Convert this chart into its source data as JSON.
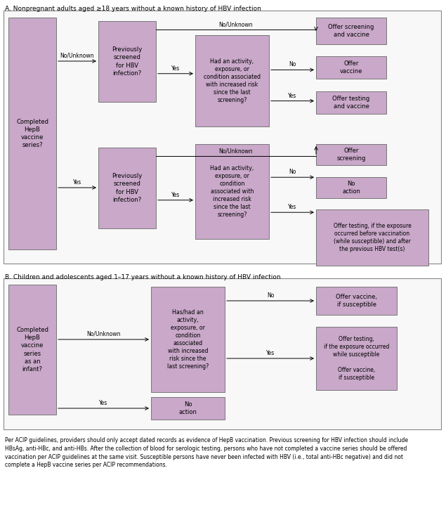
{
  "fig_width": 6.35,
  "fig_height": 7.2,
  "dpi": 100,
  "bg_color": "#ffffff",
  "box_fill": "#c9a8c9",
  "box_edge": "#777777",
  "section_bg": "#f8f8f8",
  "section_border": "#888888",
  "title_A": "A. Nonpregnant adults aged ≥18 years without a known history of HBV infection",
  "title_B": "B. Children and adolescents aged 1–17 years without a known history of HBV infection",
  "footer": "Per ACIP guidelines, providers should only accept dated records as evidence of HepB vaccination. Previous screening for HBV infection should include\nHBsAg, anti-HBc, and anti-HBs. After the collection of blood for serologic testing, persons who have not completed a vaccine series should be offered\nvaccination per ACIP guidelines at the same visit. Susceptible persons have never been infected with HBV (i.e., total anti-HBc negative) and did not\ncomplete a HepB vaccine series per ACIP recommendations.",
  "font_size_title": 6.5,
  "font_size_box": 6.0,
  "font_size_label": 5.5,
  "font_size_footer": 5.5
}
